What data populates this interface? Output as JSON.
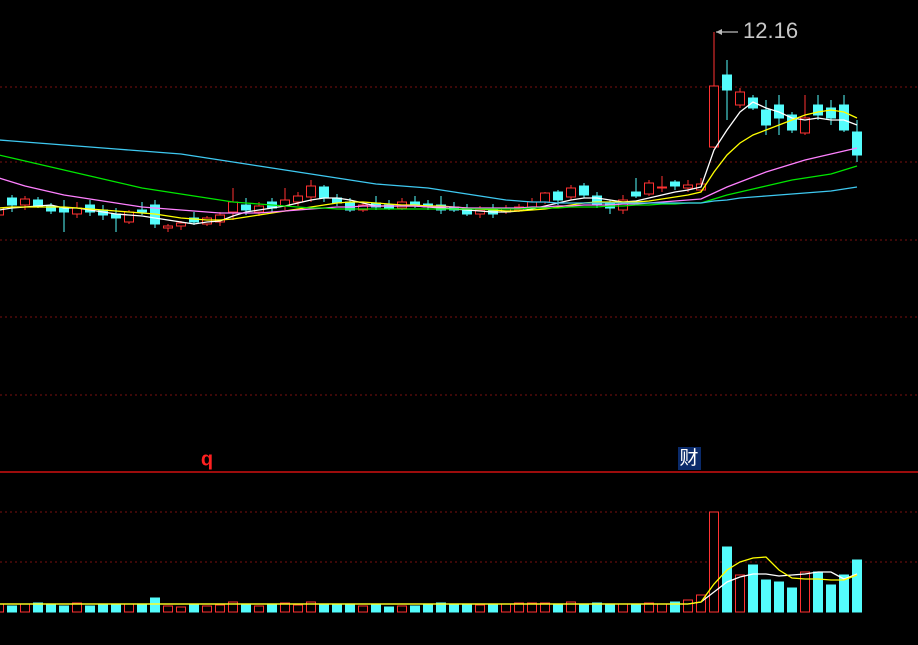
{
  "chart_data": [
    {
      "type": "candlestick",
      "open": [
        10.33,
        10.5,
        10.43,
        10.48,
        10.42,
        10.4,
        10.34,
        10.43,
        10.38,
        10.34,
        10.26,
        10.38,
        10.43,
        10.2,
        10.22,
        10.3,
        10.24,
        10.26,
        10.36,
        10.43,
        10.36,
        10.46,
        10.42,
        10.46,
        10.51,
        10.61,
        10.5,
        10.46,
        10.38,
        10.45,
        10.43,
        10.4,
        10.46,
        10.44,
        10.43,
        10.41,
        10.4,
        10.34,
        10.39,
        10.36,
        10.38,
        10.4,
        10.46,
        10.56,
        10.51,
        10.62,
        10.52,
        10.44,
        10.38,
        10.56,
        10.54,
        10.6,
        10.66,
        10.6,
        10.58,
        11.01,
        11.73,
        11.43,
        11.5,
        11.38,
        11.43,
        11.33,
        11.15,
        11.43,
        11.4,
        11.43,
        11.16
      ],
      "high": [
        10.43,
        10.53,
        10.52,
        10.51,
        10.45,
        10.48,
        10.46,
        10.48,
        10.43,
        10.4,
        10.38,
        10.46,
        10.48,
        10.24,
        10.27,
        10.36,
        10.32,
        10.36,
        10.6,
        10.5,
        10.46,
        10.5,
        10.6,
        10.56,
        10.68,
        10.63,
        10.54,
        10.5,
        10.46,
        10.52,
        10.48,
        10.5,
        10.52,
        10.48,
        10.52,
        10.46,
        10.44,
        10.42,
        10.44,
        10.43,
        10.44,
        10.5,
        10.56,
        10.58,
        10.63,
        10.65,
        10.56,
        10.48,
        10.53,
        10.7,
        10.68,
        10.72,
        10.68,
        10.68,
        10.7,
        12.16,
        11.88,
        11.6,
        11.53,
        11.48,
        11.53,
        11.36,
        11.53,
        11.53,
        11.48,
        11.53,
        11.28
      ],
      "low": [
        10.26,
        10.36,
        10.38,
        10.4,
        10.34,
        10.16,
        10.3,
        10.32,
        10.28,
        10.16,
        10.24,
        10.33,
        10.2,
        10.16,
        10.18,
        10.23,
        10.22,
        10.22,
        10.28,
        10.33,
        10.32,
        10.36,
        10.38,
        10.42,
        10.46,
        10.46,
        10.42,
        10.36,
        10.36,
        10.38,
        10.38,
        10.38,
        10.4,
        10.38,
        10.34,
        10.36,
        10.32,
        10.3,
        10.3,
        10.34,
        10.36,
        10.38,
        10.44,
        10.43,
        10.48,
        10.5,
        10.4,
        10.34,
        10.34,
        10.5,
        10.52,
        10.56,
        10.58,
        10.56,
        10.56,
        11.0,
        11.28,
        11.4,
        11.38,
        11.13,
        11.13,
        11.15,
        11.13,
        11.28,
        11.23,
        11.16,
        10.86
      ],
      "close": [
        10.4,
        10.43,
        10.49,
        10.42,
        10.37,
        10.36,
        10.4,
        10.36,
        10.33,
        10.3,
        10.36,
        10.36,
        10.24,
        10.22,
        10.25,
        10.26,
        10.3,
        10.33,
        10.46,
        10.38,
        10.42,
        10.4,
        10.48,
        10.52,
        10.62,
        10.5,
        10.45,
        10.38,
        10.43,
        10.41,
        10.4,
        10.46,
        10.42,
        10.41,
        10.38,
        10.38,
        10.34,
        10.38,
        10.34,
        10.39,
        10.41,
        10.46,
        10.55,
        10.48,
        10.6,
        10.53,
        10.44,
        10.4,
        10.48,
        10.52,
        10.65,
        10.61,
        10.62,
        10.63,
        10.64,
        11.62,
        11.58,
        11.56,
        11.4,
        11.23,
        11.3,
        11.18,
        11.3,
        11.33,
        11.3,
        11.18,
        10.93
      ],
      "up_color": "#ff3232",
      "down_color": "#54fcfc",
      "series": [
        {
          "color": "#ffffff",
          "values": [
            10.38,
            10.4,
            10.41,
            10.42,
            10.43,
            10.4,
            10.4,
            10.38,
            10.36,
            10.34,
            10.33,
            10.32,
            10.3,
            10.28,
            10.26,
            10.24,
            10.26,
            10.27,
            10.32,
            10.36,
            10.38,
            10.4,
            10.42,
            10.45,
            10.48,
            10.5,
            10.5,
            10.48,
            10.45,
            10.42,
            10.42,
            10.42,
            10.42,
            10.41,
            10.4,
            10.39,
            10.38,
            10.37,
            10.36,
            10.36,
            10.37,
            10.39,
            10.42,
            10.45,
            10.48,
            10.5,
            10.5,
            10.48,
            10.46,
            10.47,
            10.5,
            10.53,
            10.56,
            10.58,
            10.61,
            10.98,
            11.18,
            11.36,
            11.46,
            11.4,
            11.36,
            11.3,
            11.28,
            11.3,
            11.28,
            11.28,
            11.23
          ]
        },
        {
          "color": "#ffff00",
          "values": [
            10.4,
            10.41,
            10.41,
            10.41,
            10.41,
            10.41,
            10.4,
            10.39,
            10.38,
            10.37,
            10.36,
            10.35,
            10.34,
            10.32,
            10.3,
            10.29,
            10.28,
            10.28,
            10.29,
            10.31,
            10.33,
            10.35,
            10.37,
            10.39,
            10.41,
            10.43,
            10.45,
            10.46,
            10.46,
            10.45,
            10.44,
            10.43,
            10.43,
            10.42,
            10.42,
            10.41,
            10.4,
            10.39,
            10.38,
            10.37,
            10.37,
            10.38,
            10.39,
            10.41,
            10.43,
            10.45,
            10.46,
            10.46,
            10.46,
            10.46,
            10.47,
            10.49,
            10.51,
            10.53,
            10.56,
            10.76,
            10.93,
            11.05,
            11.13,
            11.18,
            11.23,
            11.28,
            11.33,
            11.36,
            11.38,
            11.36,
            11.3
          ]
        },
        {
          "color": "#ff80ff",
          "values": [
            10.7,
            10.66,
            10.62,
            10.59,
            10.56,
            10.53,
            10.51,
            10.49,
            10.47,
            10.45,
            10.43,
            10.41,
            10.4,
            10.39,
            10.38,
            10.37,
            10.36,
            10.35,
            10.35,
            10.35,
            10.35,
            10.36,
            10.37,
            10.38,
            10.39,
            10.4,
            10.41,
            10.41,
            10.42,
            10.42,
            10.42,
            10.42,
            10.42,
            10.41,
            10.41,
            10.41,
            10.4,
            10.4,
            10.4,
            10.4,
            10.4,
            10.41,
            10.41,
            10.42,
            10.42,
            10.43,
            10.43,
            10.43,
            10.44,
            10.44,
            10.45,
            10.46,
            10.47,
            10.48,
            10.49,
            10.55,
            10.61,
            10.66,
            10.71,
            10.76,
            10.8,
            10.84,
            10.88,
            10.91,
            10.94,
            10.97,
            11.0
          ]
        },
        {
          "color": "#00e600",
          "values": [
            10.93,
            10.9,
            10.87,
            10.84,
            10.81,
            10.78,
            10.75,
            10.72,
            10.69,
            10.66,
            10.63,
            10.6,
            10.58,
            10.56,
            10.54,
            10.52,
            10.5,
            10.48,
            10.46,
            10.45,
            10.44,
            10.43,
            10.42,
            10.41,
            10.4,
            10.4,
            10.39,
            10.39,
            10.39,
            10.39,
            10.39,
            10.39,
            10.39,
            10.39,
            10.39,
            10.39,
            10.39,
            10.39,
            10.39,
            10.39,
            10.39,
            10.4,
            10.4,
            10.4,
            10.41,
            10.41,
            10.41,
            10.42,
            10.42,
            10.43,
            10.43,
            10.44,
            10.44,
            10.45,
            10.45,
            10.49,
            10.53,
            10.56,
            10.59,
            10.62,
            10.65,
            10.68,
            10.7,
            10.72,
            10.74,
            10.78,
            10.82
          ]
        },
        {
          "color": "#3ec8f0",
          "values": [
            11.08,
            11.07,
            11.06,
            11.05,
            11.04,
            11.03,
            11.02,
            11.01,
            11.0,
            10.99,
            10.98,
            10.97,
            10.96,
            10.95,
            10.94,
            10.92,
            10.9,
            10.88,
            10.86,
            10.84,
            10.82,
            10.8,
            10.78,
            10.76,
            10.74,
            10.72,
            10.7,
            10.68,
            10.66,
            10.64,
            10.63,
            10.62,
            10.61,
            10.6,
            10.58,
            10.56,
            10.54,
            10.52,
            10.5,
            10.48,
            10.47,
            10.46,
            10.46,
            10.45,
            10.45,
            10.45,
            10.45,
            10.45,
            10.45,
            10.45,
            10.45,
            10.45,
            10.45,
            10.45,
            10.45,
            10.47,
            10.48,
            10.5,
            10.51,
            10.52,
            10.53,
            10.54,
            10.55,
            10.56,
            10.57,
            10.59,
            10.61
          ]
        }
      ],
      "ylim": [
        7.78,
        12.48
      ],
      "yticks": [
        11.61,
        10.86,
        10.08,
        9.31,
        8.53
      ],
      "grid": true,
      "annotation": "12.16",
      "markers": [
        "q",
        "财"
      ]
    },
    {
      "type": "bar",
      "values": [
        8,
        6,
        8,
        9,
        7,
        6,
        9,
        6,
        8,
        7,
        8,
        7,
        14,
        6,
        5,
        7,
        6,
        7,
        10,
        8,
        6,
        8,
        9,
        7,
        10,
        8,
        7,
        8,
        6,
        7,
        5,
        6,
        6,
        7,
        9,
        8,
        8,
        7,
        8,
        8,
        9,
        9,
        9,
        8,
        10,
        8,
        9,
        8,
        8,
        8,
        9,
        8,
        10,
        12,
        17,
        100,
        65,
        37,
        47,
        32,
        30,
        24,
        40,
        40,
        27,
        37,
        52
      ],
      "series": [
        {
          "color": "#ffffff",
          "values": [
            8,
            8,
            8,
            8,
            8,
            8,
            8,
            8,
            8,
            8,
            8,
            8,
            8,
            8,
            8,
            8,
            8,
            8,
            8,
            8,
            8,
            8,
            8,
            8,
            8,
            8,
            8,
            8,
            8,
            8,
            8,
            8,
            8,
            8,
            8,
            8,
            8,
            8,
            8,
            8,
            8,
            8,
            8,
            8,
            8,
            8,
            8,
            8,
            8,
            8,
            8,
            8,
            8,
            8,
            10,
            20,
            30,
            35,
            38,
            38,
            36,
            37,
            38,
            40,
            40,
            33,
            38
          ]
        },
        {
          "color": "#ffff00",
          "values": [
            8,
            8,
            8,
            8,
            8,
            8,
            8,
            8,
            8,
            8,
            8,
            8,
            8,
            8,
            8,
            8,
            8,
            8,
            8,
            8,
            8,
            8,
            8,
            8,
            8,
            8,
            8,
            8,
            8,
            8,
            8,
            8,
            8,
            8,
            8,
            8,
            8,
            8,
            8,
            8,
            8,
            8,
            8,
            8,
            8,
            8,
            8,
            8,
            8,
            8,
            8,
            8,
            8,
            8,
            10,
            28,
            42,
            50,
            54,
            55,
            42,
            34,
            33,
            33,
            32,
            32,
            37
          ]
        }
      ],
      "ylim": [
        0,
        140
      ],
      "yticks": [
        50,
        100
      ],
      "grid": true
    }
  ]
}
